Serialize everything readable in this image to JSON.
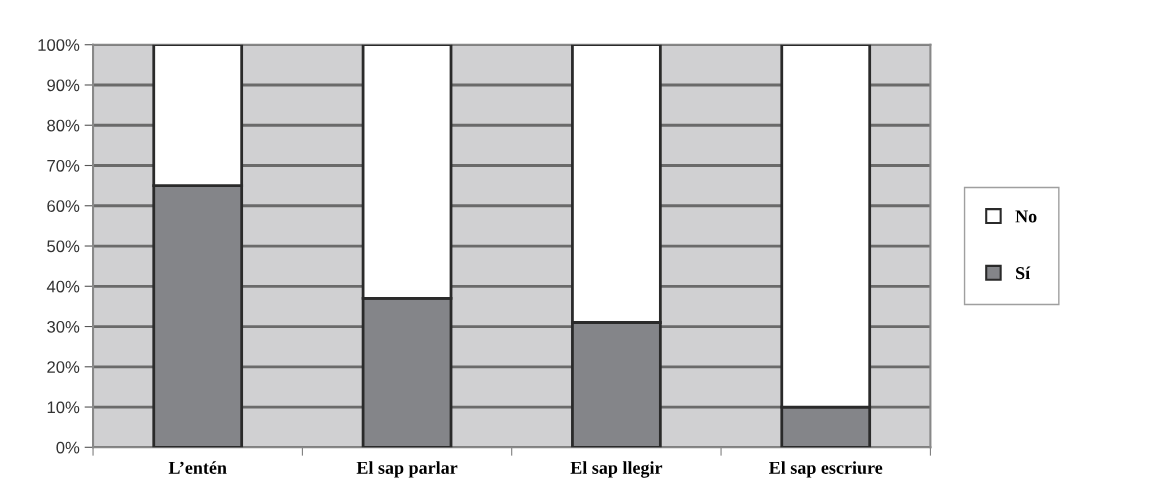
{
  "chart_data": {
    "type": "bar",
    "stacked": true,
    "categories": [
      "L’entén",
      "El sap parlar",
      "El sap llegir",
      "El sap escriure"
    ],
    "series": [
      {
        "name": "Sí",
        "color": "#848589",
        "values": [
          65,
          37,
          31,
          10
        ]
      },
      {
        "name": "No",
        "color": "#ffffff",
        "values": [
          35,
          63,
          69,
          90
        ]
      }
    ],
    "ylim": [
      0,
      100
    ],
    "yticks": [
      {
        "value": 0,
        "label": "0%"
      },
      {
        "value": 10,
        "label": "10%"
      },
      {
        "value": 20,
        "label": "20%"
      },
      {
        "value": 30,
        "label": "30%"
      },
      {
        "value": 40,
        "label": "40%"
      },
      {
        "value": 50,
        "label": "50%"
      },
      {
        "value": 60,
        "label": "60%"
      },
      {
        "value": 70,
        "label": "70%"
      },
      {
        "value": 80,
        "label": "80%"
      },
      {
        "value": 90,
        "label": "90%"
      },
      {
        "value": 100,
        "label": "100%"
      }
    ],
    "grid": "y",
    "legend": "right"
  }
}
